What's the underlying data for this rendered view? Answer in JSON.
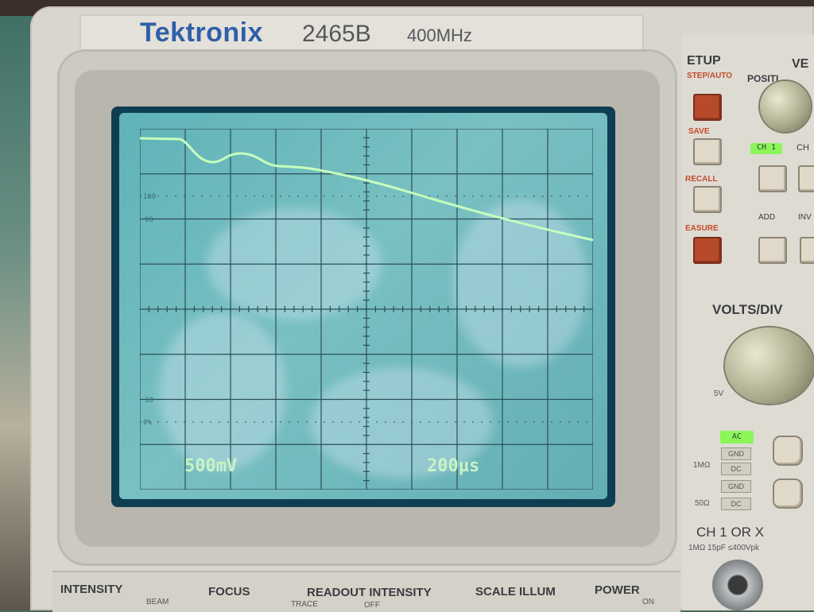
{
  "brand": {
    "name": "Tektronix",
    "model": "2465B",
    "bandwidth": "400MHz"
  },
  "screen_readout": {
    "volts_per_div": "500mV",
    "time_per_div": "200µs"
  },
  "graticule_labels": {
    "p100": "100",
    "p90": "90",
    "p10": "10",
    "p0": "0%"
  },
  "right_panel": {
    "setup_label": "ETUP",
    "vertical_label": "VE",
    "position_label": "POSITI",
    "step_auto": "STEP/AUTO",
    "save_label": "SAVE",
    "recall_label": "RECALL",
    "measure_label": "EASURE",
    "ch1_led": "CH 1",
    "ch2_label": "CH",
    "add_label": "ADD",
    "inv_label": "INV",
    "volts_div_label": "VOLTS/DIV",
    "volts_min": "5V",
    "coupling_ac": "AC",
    "coupling_gnd": "GND",
    "coupling_dc": "DC",
    "coupling_gnd2": "GND",
    "coupling_dc2": "DC",
    "imp_1m": "1MΩ",
    "imp_50": "50Ω",
    "ch1_or_x": "CH 1 OR X",
    "input_spec": "1MΩ 15pF ≤400Vpk"
  },
  "bottom_panel": {
    "intensity": "INTENSITY",
    "beam_find": "BEAM",
    "focus": "FOCUS",
    "readout_intensity": "READOUT INTENSITY",
    "trace": "TRACE",
    "off": "OFF",
    "scale_illum": "SCALE ILLUM",
    "power": "POWER",
    "on": "ON"
  },
  "colors": {
    "trace": "#b9ffb0",
    "screen": "#6db9bd",
    "brand": "#2f5fa8",
    "led": "#8cf55a",
    "red_button": "#b84a2c"
  },
  "waveform": {
    "shape": "decaying trace from top-left to right with small dip near start"
  }
}
